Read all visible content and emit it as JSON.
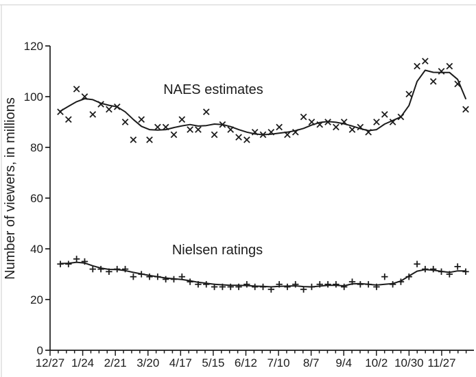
{
  "colors": {
    "ink": "#1c1c1c",
    "scan_edge": "#d6d6d6",
    "background": "#ffffff"
  },
  "chart_data": {
    "type": "scatter",
    "ylabel": "Number of viewers, in millions",
    "ylim": [
      0,
      120
    ],
    "yticks": [
      0,
      20,
      40,
      60,
      80,
      100,
      120
    ],
    "x_major_tick_labels": [
      "12/27",
      "1/24",
      "2/21",
      "3/20",
      "4/17",
      "5/15",
      "6/12",
      "7/10",
      "8/7",
      "9/4",
      "10/2",
      "10/30",
      "11/27"
    ],
    "x_weeks_per_major": 4,
    "x_minor_tick_weeks": 52,
    "grid": false,
    "legend_position": "inline-annotations",
    "series": [
      {
        "name": "NAES estimates",
        "marker": "x",
        "values": [
          94,
          91,
          103,
          100,
          93,
          97,
          95,
          96,
          90,
          83,
          91,
          83,
          88,
          88,
          85,
          91,
          87,
          87,
          94,
          85,
          89,
          87,
          84,
          83,
          86,
          85,
          86,
          88,
          85,
          86,
          92,
          90,
          89,
          90,
          88,
          90,
          87,
          88,
          86,
          90,
          93,
          90,
          92,
          101,
          112,
          114,
          106,
          110,
          112,
          105,
          95
        ],
        "trend": [
          94.3,
          96.2,
          98.0,
          99.2,
          98.8,
          97.4,
          96.6,
          96.0,
          94.0,
          91.0,
          88.3,
          87.0,
          86.8,
          87.0,
          87.8,
          88.5,
          89.0,
          88.4,
          88.6,
          89.2,
          89.0,
          88.2,
          87.0,
          86.0,
          85.3,
          85.0,
          85.2,
          85.6,
          86.0,
          86.6,
          87.5,
          88.8,
          89.8,
          90.2,
          89.9,
          89.3,
          88.4,
          87.4,
          86.6,
          87.0,
          89.2,
          90.6,
          92.0,
          96.5,
          106.0,
          110.4,
          109.6,
          109.5,
          109.5,
          106.8,
          99.2
        ]
      },
      {
        "name": "Nielsen ratings",
        "marker": "+",
        "values": [
          34,
          34,
          36,
          35,
          32,
          32,
          31,
          32,
          32,
          29,
          30,
          29,
          29,
          28,
          28,
          29,
          27,
          26,
          26,
          25,
          25,
          25,
          25,
          26,
          25,
          25,
          24,
          26,
          25,
          26,
          24,
          25,
          26,
          26,
          26,
          25,
          27,
          26,
          26,
          25,
          29,
          26,
          27,
          29,
          34,
          32,
          32,
          31,
          30,
          33,
          31
        ],
        "trend": [
          34.2,
          34.3,
          34.7,
          34.4,
          33.3,
          32.4,
          31.9,
          31.8,
          31.4,
          30.7,
          30.1,
          29.5,
          29.0,
          28.5,
          28.2,
          27.9,
          27.4,
          26.8,
          26.4,
          26.0,
          25.8,
          25.6,
          25.6,
          25.5,
          25.3,
          25.2,
          25.0,
          25.2,
          25.3,
          25.4,
          25.1,
          25.0,
          25.3,
          25.6,
          25.6,
          25.4,
          26.2,
          26.3,
          26.0,
          25.7,
          26.0,
          26.3,
          27.3,
          29.3,
          31.2,
          31.8,
          31.6,
          31.1,
          30.7,
          31.3,
          31.3
        ]
      }
    ]
  }
}
